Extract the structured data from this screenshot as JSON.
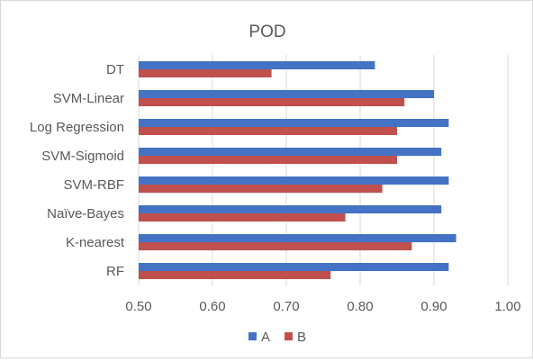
{
  "chart_data": {
    "type": "bar",
    "orientation": "horizontal",
    "title": "POD",
    "categories": [
      "DT",
      "SVM-Linear",
      "Log Regression",
      "SVM-Sigmoid",
      "SVM-RBF",
      "Naïve-Bayes",
      "K-nearest",
      "RF"
    ],
    "series": [
      {
        "name": "A",
        "color": "#4472c4",
        "values": [
          0.82,
          0.9,
          0.92,
          0.91,
          0.92,
          0.91,
          0.93,
          0.92
        ]
      },
      {
        "name": "B",
        "color": "#c0504d",
        "values": [
          0.68,
          0.86,
          0.85,
          0.85,
          0.83,
          0.78,
          0.87,
          0.76
        ]
      }
    ],
    "xlim": [
      0.5,
      1.0
    ],
    "xticks": [
      "0.50",
      "0.60",
      "0.70",
      "0.80",
      "0.90",
      "1.00"
    ],
    "grid": "vertical",
    "legend": "bottom"
  }
}
